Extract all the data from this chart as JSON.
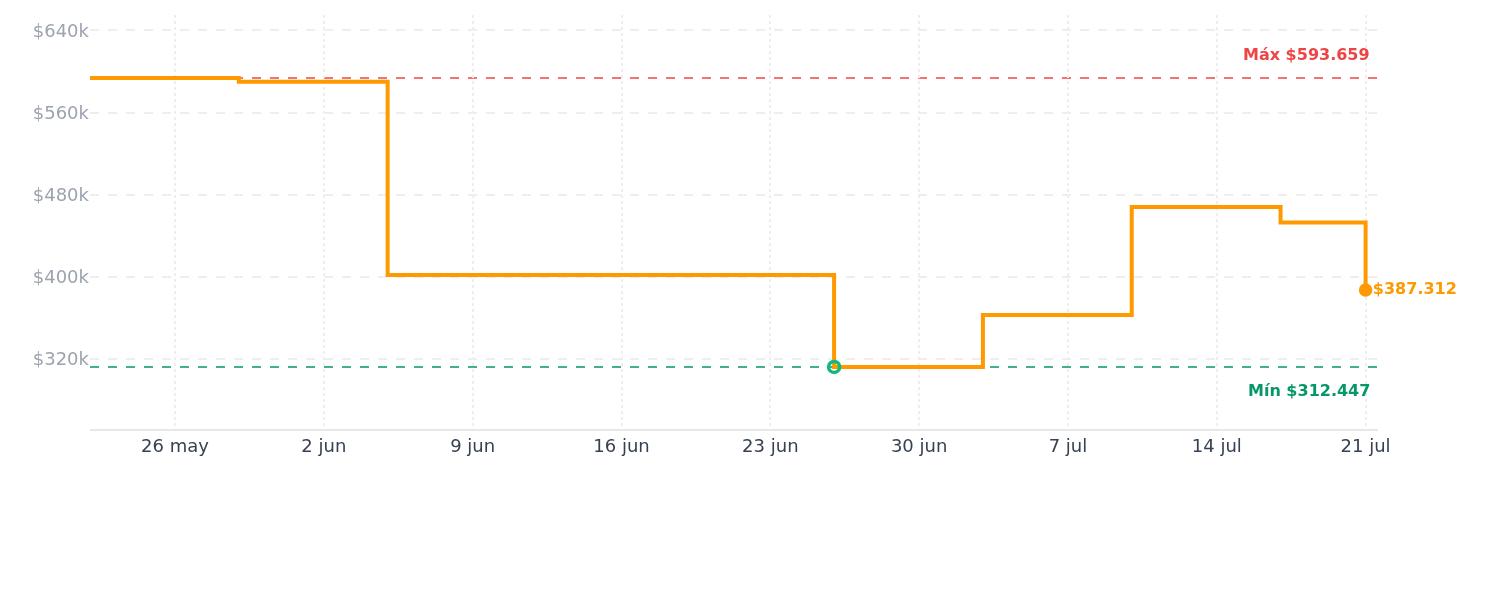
{
  "chart_data": {
    "type": "step",
    "series": [
      {
        "color": "#ff9900",
        "x": [
          "--05-22",
          "--05-29",
          "--06-05",
          "--06-26",
          "--07-03",
          "--07-10",
          "--07-17",
          "--07-21"
        ],
        "values": [
          593659,
          590000,
          402000,
          312447,
          363000,
          468000,
          453000,
          387312
        ]
      },
      {
        "type": "scatter",
        "color": "#10b981",
        "marker": "circle",
        "x": [
          "--06-26"
        ],
        "values": [
          312447
        ]
      },
      {
        "type": "scatter",
        "color": "#ff9900",
        "marker": "circle",
        "x": [
          "--07-21"
        ],
        "values": [
          387312
        ],
        "value_labels": [
          "$387.312"
        ]
      }
    ],
    "xlim": [
      "--05-22",
      "--07-21T14:00"
    ],
    "xticks": [
      {
        "value": "--05-26",
        "label": "26 may"
      },
      {
        "value": "--06-02",
        "label": "2 jun"
      },
      {
        "value": "--06-09",
        "label": "9 jun"
      },
      {
        "value": "--06-16",
        "label": "16 jun"
      },
      {
        "value": "--06-23",
        "label": "23 jun"
      },
      {
        "value": "--06-30",
        "label": "30 jun"
      },
      {
        "value": "--07-07",
        "label": "7 jul"
      },
      {
        "value": "--07-14",
        "label": "14 jul"
      },
      {
        "value": "--07-21",
        "label": "21 jul"
      }
    ],
    "ylim": [
      252000,
      655000
    ],
    "yticks": [
      {
        "value": 320000,
        "label": "$320k"
      },
      {
        "value": 400000,
        "label": "$400k"
      },
      {
        "value": 480000,
        "label": "$480k"
      },
      {
        "value": 560000,
        "label": "$560k"
      },
      {
        "value": 640000,
        "label": "$640k"
      }
    ],
    "ref_lines": [
      {
        "axis": "y",
        "value": 593659,
        "label": "Máx $593.659",
        "color": "#ef4444",
        "line_style": "dashed"
      },
      {
        "axis": "y",
        "value": 312447,
        "label": "Mín $312.447",
        "color": "#059669",
        "line_style": "dashed"
      }
    ],
    "grid": true
  }
}
